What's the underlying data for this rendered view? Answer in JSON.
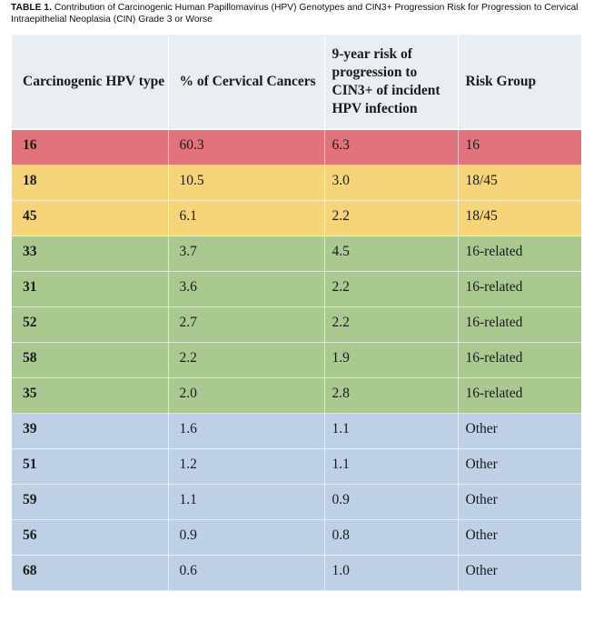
{
  "caption": {
    "label": "TABLE 1.",
    "text": " Contribution of Carcinogenic Human Papillomavirus (HPV) Genotypes and CIN3+ Progression Risk for Progression to Cervical Intraepithelial Neoplasia (CIN) Grade 3 or Worse"
  },
  "table": {
    "headers": [
      "Carcinogenic HPV type",
      "% of Cervical Cancers",
      "9-year risk of progression to CIN3+ of incident HPV infection",
      "Risk Group"
    ],
    "rows": [
      {
        "type": "16",
        "pct": "60.3",
        "risk": "6.3",
        "group": "16",
        "color": "#e0737b"
      },
      {
        "type": "18",
        "pct": "10.5",
        "risk": "3.0",
        "group": "18/45",
        "color": "#f5d47a"
      },
      {
        "type": "45",
        "pct": "6.1",
        "risk": "2.2",
        "group": "18/45",
        "color": "#f5d47a"
      },
      {
        "type": "33",
        "pct": "3.7",
        "risk": "4.5",
        "group": "16-related",
        "color": "#a9c990"
      },
      {
        "type": "31",
        "pct": "3.6",
        "risk": "2.2",
        "group": "16-related",
        "color": "#a9c990"
      },
      {
        "type": "52",
        "pct": "2.7",
        "risk": "2.2",
        "group": "16-related",
        "color": "#a9c990"
      },
      {
        "type": "58",
        "pct": "2.2",
        "risk": "1.9",
        "group": "16-related",
        "color": "#a9c990"
      },
      {
        "type": "35",
        "pct": "2.0",
        "risk": "2.8",
        "group": "16-related",
        "color": "#a9c990"
      },
      {
        "type": "39",
        "pct": "1.6",
        "risk": "1.1",
        "group": "Other",
        "color": "#bdd0e5"
      },
      {
        "type": "51",
        "pct": "1.2",
        "risk": "1.1",
        "group": "Other",
        "color": "#bdd0e5"
      },
      {
        "type": "59",
        "pct": "1.1",
        "risk": "0.9",
        "group": "Other",
        "color": "#bdd0e5"
      },
      {
        "type": "56",
        "pct": "0.9",
        "risk": "0.8",
        "group": "Other",
        "color": "#bdd0e5"
      },
      {
        "type": "68",
        "pct": "0.6",
        "risk": "1.0",
        "group": "Other",
        "color": "#bdd0e5"
      }
    ]
  }
}
